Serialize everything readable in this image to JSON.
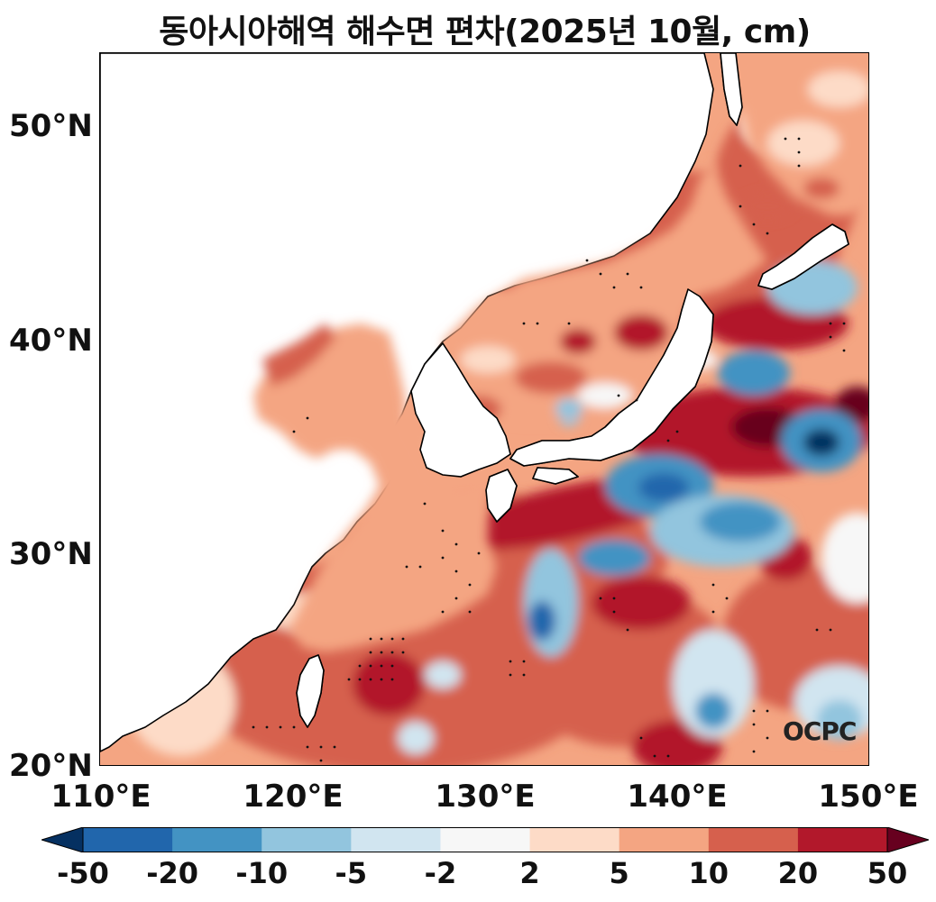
{
  "title": "동아시아해역 해수면 편차(2025년 10월, cm)",
  "map": {
    "region": "East Asian seas",
    "lon_range": [
      110,
      150
    ],
    "lat_range": [
      20,
      53.5
    ],
    "variable": "sea level anomaly",
    "stippling": true
  },
  "axes": {
    "y_ticks": [
      "50°N",
      "40°N",
      "30°N",
      "20°N"
    ],
    "x_ticks": [
      "110°E",
      "120°E",
      "130°E",
      "140°E",
      "150°E"
    ]
  },
  "watermark": "OCPC",
  "colorbar": {
    "labels": [
      "-50",
      "-20",
      "-10",
      "-5",
      "-2",
      "2",
      "5",
      "10",
      "20",
      "50"
    ],
    "colors": [
      "#053061",
      "#2166ac",
      "#4393c3",
      "#92c5de",
      "#d1e5f0",
      "#f7f7f7",
      "#fddbc7",
      "#f4a582",
      "#d6604d",
      "#b2182b",
      "#67001f"
    ],
    "extend": "both"
  }
}
